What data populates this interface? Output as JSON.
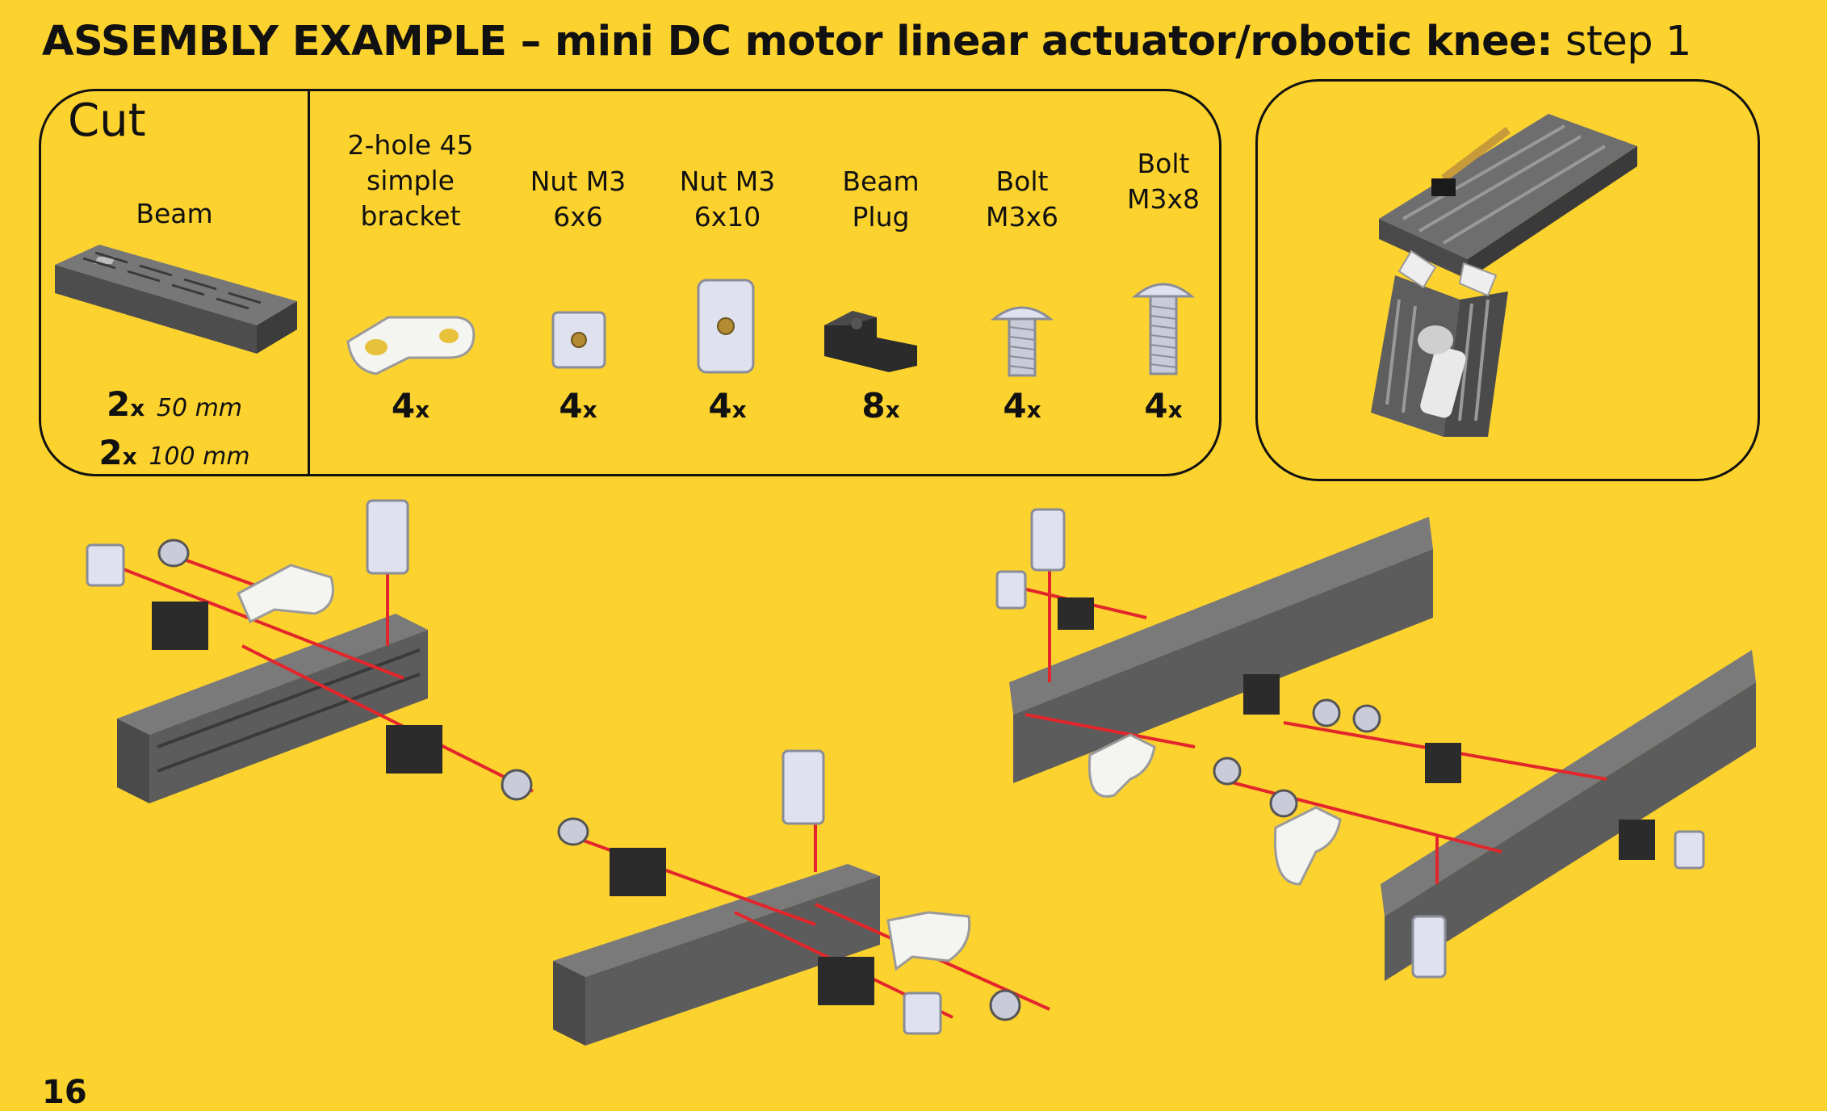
{
  "header": {
    "title_bold": "ASSEMBLY EXAMPLE – mini DC motor linear actuator/robotic knee:",
    "title_light": "step 1"
  },
  "cut_section": {
    "label": "Cut",
    "part_name": "Beam",
    "qty_lines": [
      {
        "count": "2",
        "x": "x",
        "length": "50 mm"
      },
      {
        "count": "2",
        "x": "x",
        "length": "100 mm"
      }
    ]
  },
  "parts": [
    {
      "name": "2-hole 45\nsimple\nbracket",
      "count": "4",
      "x": "x",
      "icon": "bracket-45-icon"
    },
    {
      "name": "Nut M3\n6x6",
      "count": "4",
      "x": "x",
      "icon": "nut-6x6-icon"
    },
    {
      "name": "Nut M3\n6x10",
      "count": "4",
      "x": "x",
      "icon": "nut-6x10-icon"
    },
    {
      "name": "Beam\nPlug",
      "count": "8",
      "x": "x",
      "icon": "beam-plug-icon"
    },
    {
      "name": "Bolt\nM3x6",
      "count": "4",
      "x": "x",
      "icon": "bolt-m3x6-icon"
    },
    {
      "name": "Bolt\nM3x8",
      "count": "4",
      "x": "x",
      "icon": "bolt-m3x8-icon"
    }
  ],
  "page": {
    "number": "16"
  },
  "colors": {
    "background": "#fcd22e",
    "beam": "#5a5a5a",
    "plug": "#2a2a2a",
    "metal": "#c9cbd3",
    "arrow": "#e3262b"
  }
}
